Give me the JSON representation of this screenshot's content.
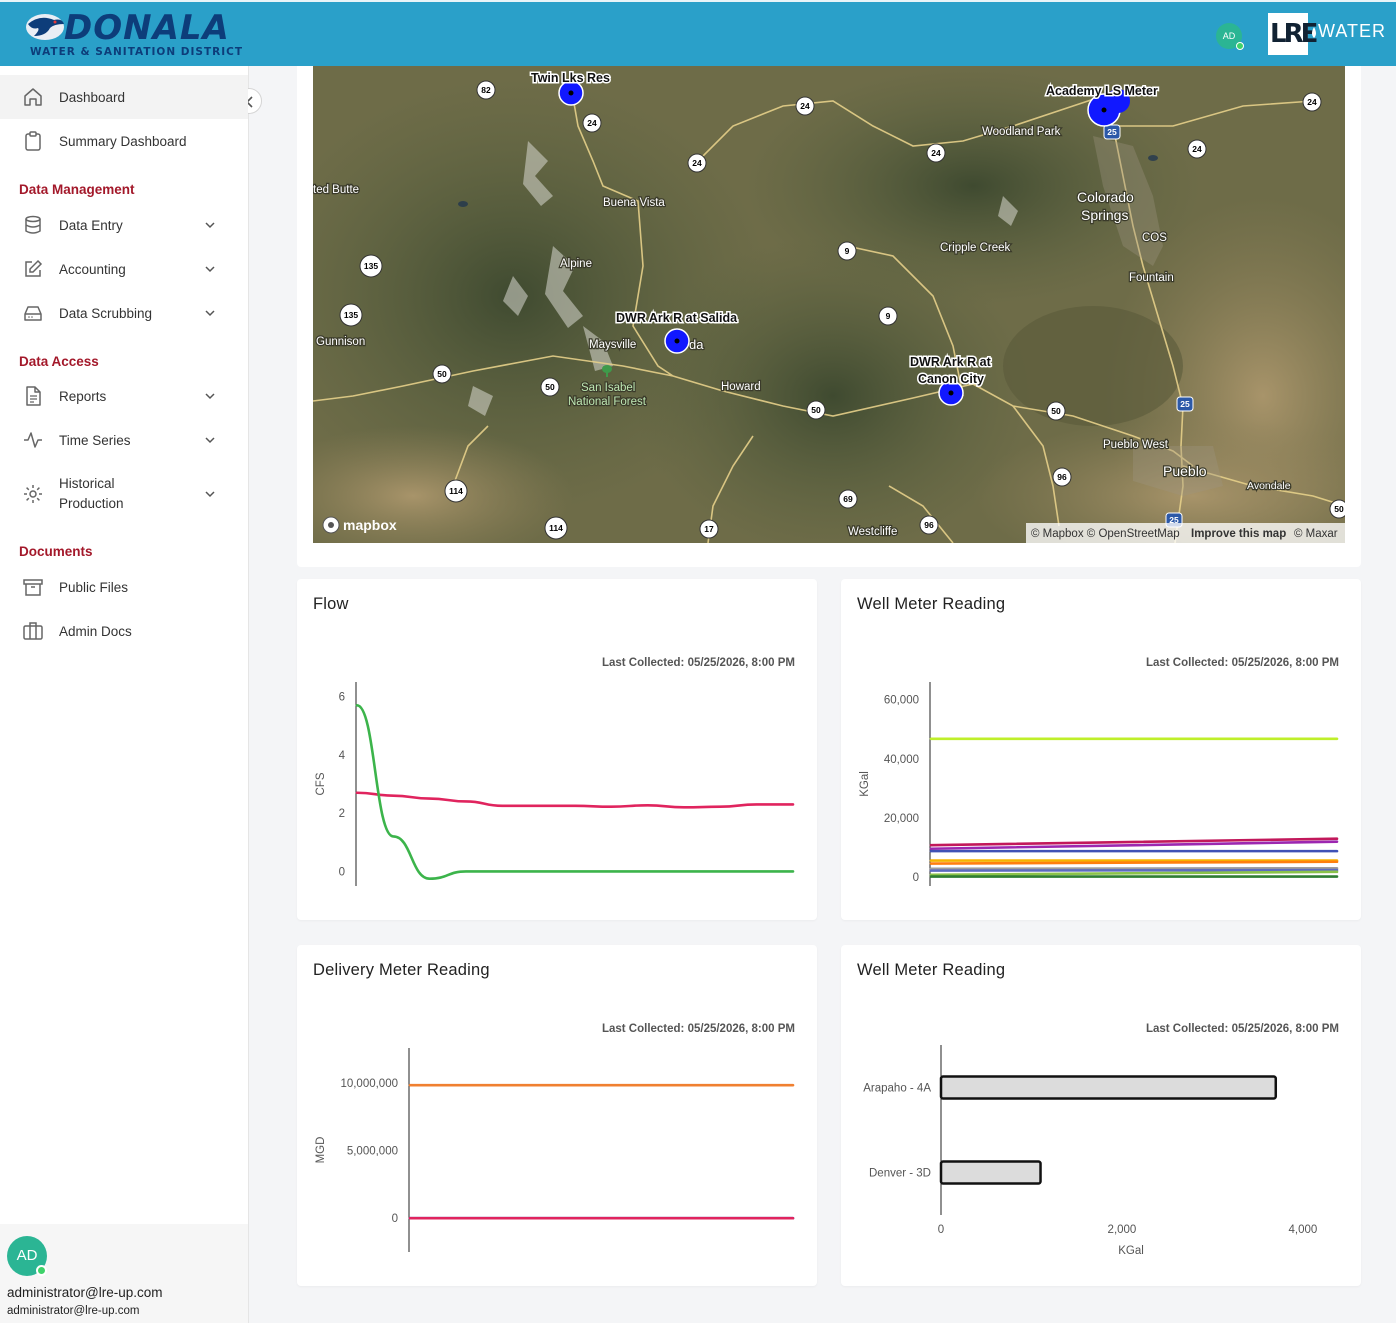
{
  "header": {
    "logo_name": "DONALA",
    "logo_sub": "WATER & SANITATION DISTRICT",
    "avatar_initials": "AD",
    "partner_logo_mark": "LRE",
    "partner_logo_text": "WATER",
    "brand_color": "#2aa0c9"
  },
  "sidebar": {
    "items_top": [
      {
        "label": "Dashboard",
        "icon": "home-icon",
        "active": true
      },
      {
        "label": "Summary Dashboard",
        "icon": "clipboard-icon"
      }
    ],
    "data_management": {
      "title": "Data Management",
      "items": [
        {
          "label": "Data Entry",
          "icon": "database-icon"
        },
        {
          "label": "Accounting",
          "icon": "edit-icon"
        },
        {
          "label": "Data Scrubbing",
          "icon": "hard-drive-icon"
        }
      ]
    },
    "data_access": {
      "title": "Data Access",
      "items": [
        {
          "label": "Reports",
          "icon": "file-text-icon"
        },
        {
          "label": "Time Series",
          "icon": "activity-icon"
        },
        {
          "label": "Historical Production",
          "label_line1": "Historical",
          "label_line2": "Production",
          "icon": "settings-icon"
        }
      ]
    },
    "documents": {
      "title": "Documents",
      "items": [
        {
          "label": "Public Files",
          "icon": "archive-icon"
        },
        {
          "label": "Admin Docs",
          "icon": "briefcase-icon"
        }
      ]
    },
    "user": {
      "initials": "AD",
      "name": "administrator@lre-up.com",
      "email": "administrator@lre-up.com"
    },
    "section_color": "#a3182a"
  },
  "map": {
    "markers": [
      "Twin Lks Res",
      "Academy LS Meter",
      "DWR Ark R at Salida",
      "DWR Ark R at",
      "Canon City"
    ],
    "places": [
      "Woodland Park",
      "Colorado",
      "Springs",
      "COS",
      "Fountain",
      "Cripple Creek",
      "Buena Vista",
      "Alpine",
      "Maysville",
      "da",
      "San Isabel",
      "National Forest",
      "Howard",
      "Gunnison",
      "ted Butte",
      "Pueblo West",
      "Pueblo",
      "Avondale",
      "Westcliffe"
    ],
    "routes": [
      "82",
      "24",
      "24",
      "24",
      "24",
      "24",
      "24",
      "135",
      "135",
      "9",
      "9",
      "50",
      "50",
      "50",
      "50",
      "50",
      "25",
      "25",
      "25",
      "96",
      "96",
      "69",
      "114",
      "114",
      "17"
    ],
    "attribution": {
      "mapbox_logo": "mapbox",
      "text": "© Mapbox © OpenStreetMap",
      "improve": "Improve this map",
      "maxar": "© Maxar"
    }
  },
  "charts": {
    "flow": {
      "title": "Flow",
      "last_collected": "Last Collected: 05/25/2026, 8:00 PM",
      "chart_data": {
        "type": "line",
        "ylabel": "CFS",
        "ylim": [
          -0.5,
          6.5
        ],
        "yticks": [
          0,
          2,
          4,
          6
        ],
        "series": [
          {
            "color": "#e0245e",
            "values": [
              2.7,
              2.6,
              2.5,
              2.4,
              2.25,
              2.25,
              2.25,
              2.22,
              2.27,
              2.2,
              2.22,
              2.3,
              2.3
            ]
          },
          {
            "color": "#3cb44b",
            "values": [
              5.7,
              1.2,
              -0.25,
              0.0,
              0.0,
              0.0,
              0.0,
              0.0,
              0.0,
              0.0,
              0.0,
              0.0,
              0.0
            ]
          }
        ]
      }
    },
    "well_meter_line": {
      "title": "Well Meter Reading",
      "last_collected": "Last Collected: 05/25/2026, 8:00 PM",
      "chart_data": {
        "type": "line",
        "ylabel": "KGal",
        "ylim": [
          -3000,
          66000
        ],
        "yticks": [
          "0",
          "20,000",
          "40,000",
          "60,000"
        ],
        "series": [
          {
            "color": "#bfef2a",
            "values": [
              46800,
              46800
            ]
          },
          {
            "color": "#c2185b",
            "values": [
              10800,
              13000
            ]
          },
          {
            "color": "#9c27b0",
            "values": [
              9600,
              12000
            ]
          },
          {
            "color": "#3f51b5",
            "values": [
              8800,
              8800
            ]
          },
          {
            "color": "#f5b400",
            "values": [
              5600,
              5600
            ]
          },
          {
            "color": "#ff7f0e",
            "values": [
              4600,
              5200
            ]
          },
          {
            "color": "#9e9e9e",
            "values": [
              2800,
              3000
            ]
          },
          {
            "color": "#5c6bc0",
            "values": [
              2200,
              2400
            ]
          },
          {
            "color": "#8bc34a",
            "values": [
              800,
              1800
            ]
          },
          {
            "color": "#2e7d32",
            "values": [
              200,
              200
            ]
          }
        ]
      }
    },
    "delivery": {
      "title": "Delivery Meter Reading",
      "last_collected": "Last Collected: 05/25/2026, 8:00 PM",
      "chart_data": {
        "type": "line",
        "ylabel": "MGD",
        "ylim": [
          -2500000,
          12600000
        ],
        "yticks": [
          "0",
          "5,000,000",
          "10,000,000"
        ],
        "series": [
          {
            "color": "#f08030",
            "values": [
              9850000,
              9850000
            ]
          },
          {
            "color": "#2a6fd6",
            "values": [
              0,
              0
            ]
          },
          {
            "color": "#e0245e",
            "values": [
              0,
              0
            ]
          }
        ]
      }
    },
    "well_meter_bar": {
      "title": "Well Meter Reading",
      "last_collected": "Last Collected: 05/25/2026, 8:00 PM",
      "chart_data": {
        "type": "bar",
        "orientation": "horizontal",
        "categories": [
          "Arapaho - 4A",
          "Denver - 3D"
        ],
        "values": [
          3700,
          1100
        ],
        "xlabel": "KGal",
        "xlim": [
          0,
          4200
        ],
        "xticks": [
          "0",
          "2,000",
          "4,000"
        ],
        "bar_color": "#dcdcdc",
        "bar_border": "#111111"
      }
    }
  }
}
